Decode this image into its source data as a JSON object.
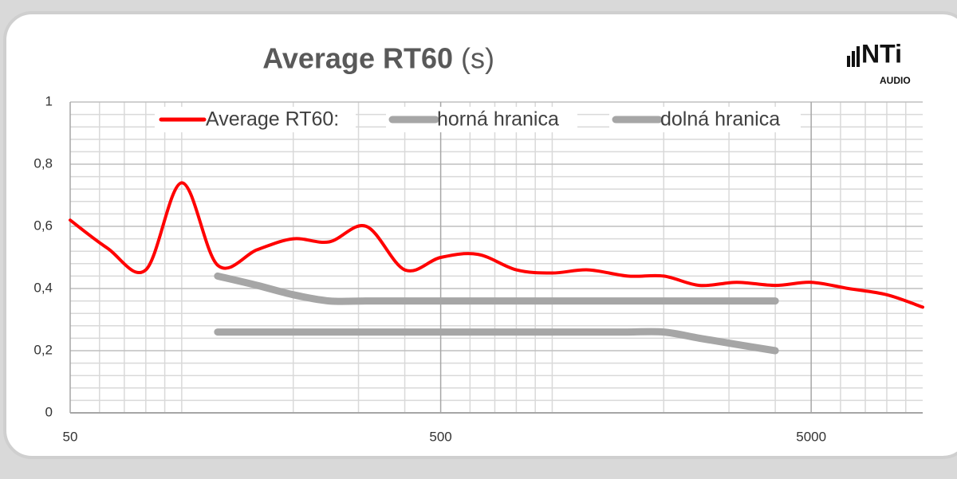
{
  "chart_data": {
    "type": "line",
    "title": "Average RT60",
    "title_unit": "(s)",
    "logo": {
      "text": "NTi",
      "sub": "AUDIO"
    },
    "x": [
      50,
      63,
      80,
      100,
      125,
      160,
      200,
      250,
      315,
      400,
      500,
      630,
      800,
      1000,
      1250,
      1600,
      2000,
      2500,
      3150,
      4000,
      5000,
      6300,
      8000,
      10000
    ],
    "series": [
      {
        "name": "Average RT60:",
        "color": "#ff0000",
        "values": [
          0.62,
          0.53,
          0.46,
          0.74,
          0.475,
          0.525,
          0.56,
          0.55,
          0.6,
          0.46,
          0.5,
          0.51,
          0.46,
          0.45,
          0.46,
          0.44,
          0.44,
          0.41,
          0.42,
          0.41,
          0.42,
          0.4,
          0.38,
          0.34
        ]
      },
      {
        "name": "horná hranica",
        "color": "#a6a6a6",
        "values": [
          null,
          null,
          null,
          null,
          0.44,
          0.41,
          0.38,
          0.36,
          0.36,
          0.36,
          0.36,
          0.36,
          0.36,
          0.36,
          0.36,
          0.36,
          0.36,
          0.36,
          0.36,
          0.36,
          null,
          null,
          null,
          null
        ]
      },
      {
        "name": "dolná hranica",
        "color": "#a6a6a6",
        "values": [
          null,
          null,
          null,
          null,
          0.26,
          0.26,
          0.26,
          0.26,
          0.26,
          0.26,
          0.26,
          0.26,
          0.26,
          0.26,
          0.26,
          0.26,
          0.26,
          0.24,
          0.22,
          0.2,
          null,
          null,
          null,
          null
        ]
      }
    ],
    "xlim": [
      50,
      10000
    ],
    "log_x": true,
    "xticks": [
      50,
      500,
      5000
    ],
    "minor_xticks": [
      60,
      70,
      80,
      90,
      100,
      200,
      300,
      400,
      600,
      700,
      800,
      900,
      1000,
      2000,
      3000,
      4000,
      6000,
      7000,
      8000,
      9000
    ],
    "ylim": [
      0,
      1
    ],
    "yticks": [
      0,
      {
        "value": 0.2,
        "label": "0,2"
      },
      {
        "value": 0.4,
        "label": "0,4"
      },
      {
        "value": 0.6,
        "label": "0,6"
      },
      {
        "value": 0.8,
        "label": "0,8"
      },
      1
    ],
    "minor_yticks": [
      0.04,
      0.08,
      0.12,
      0.16,
      0.24,
      0.28,
      0.32,
      0.36,
      0.44,
      0.48,
      0.52,
      0.56,
      0.64,
      0.68,
      0.72,
      0.76,
      0.84,
      0.88,
      0.92,
      0.96
    ],
    "grid": true,
    "legend": "top"
  }
}
